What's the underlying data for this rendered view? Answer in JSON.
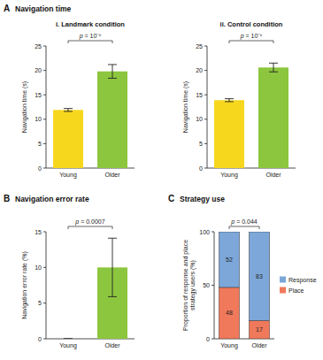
{
  "panels": [
    {
      "label": "A",
      "title": "Navigation time"
    },
    {
      "label": "B",
      "title": "Navigation error rate"
    },
    {
      "label": "C",
      "title": "Strategy use"
    }
  ],
  "chart_data": [
    {
      "type": "bar",
      "title": "i. Landmark condition",
      "y_label": "Navigation time (s)",
      "categories": [
        "Young",
        "Older"
      ],
      "values": [
        11.9,
        19.8
      ],
      "errors": [
        0.3,
        1.4
      ],
      "colors": [
        "#f7d71e",
        "#8cc63e"
      ],
      "ylim": [
        0,
        25
      ],
      "yticks": [
        0,
        5,
        10,
        15,
        20,
        25
      ],
      "annotation": "p = 10⁻⁶"
    },
    {
      "type": "bar",
      "title": "ii. Control condition",
      "y_label": "Navigation time (s)",
      "categories": [
        "Young",
        "Older"
      ],
      "values": [
        13.9,
        20.6
      ],
      "errors": [
        0.3,
        0.9
      ],
      "colors": [
        "#f7d71e",
        "#8cc63e"
      ],
      "ylim": [
        0,
        25
      ],
      "yticks": [
        0,
        5,
        10,
        15,
        20,
        25
      ],
      "annotation": "p = 10⁻⁶"
    },
    {
      "type": "bar",
      "y_label": "Navigation error rate (%)",
      "categories": [
        "Young",
        "Older"
      ],
      "values": [
        0,
        10
      ],
      "errors": [
        0,
        4.1
      ],
      "colors": [
        "#f7d71e",
        "#8cc63e"
      ],
      "ylim": [
        0,
        15
      ],
      "yticks": [
        0,
        5,
        10,
        15
      ],
      "annotation": "p = 0.0007"
    },
    {
      "type": "bar",
      "stacked": true,
      "data_labels": true,
      "legend": "right",
      "y_label": "Proportion of response and place strategy users (%)",
      "categories": [
        "Young",
        "Older"
      ],
      "series": [
        {
          "name": "Place",
          "color": "#f0795b",
          "values": [
            48,
            17
          ]
        },
        {
          "name": "Response",
          "color": "#7da7d9",
          "values": [
            52,
            83
          ]
        }
      ],
      "ylim": [
        0,
        100
      ],
      "yticks": [
        0,
        50,
        100
      ],
      "annotation": "p = 0.044"
    }
  ]
}
